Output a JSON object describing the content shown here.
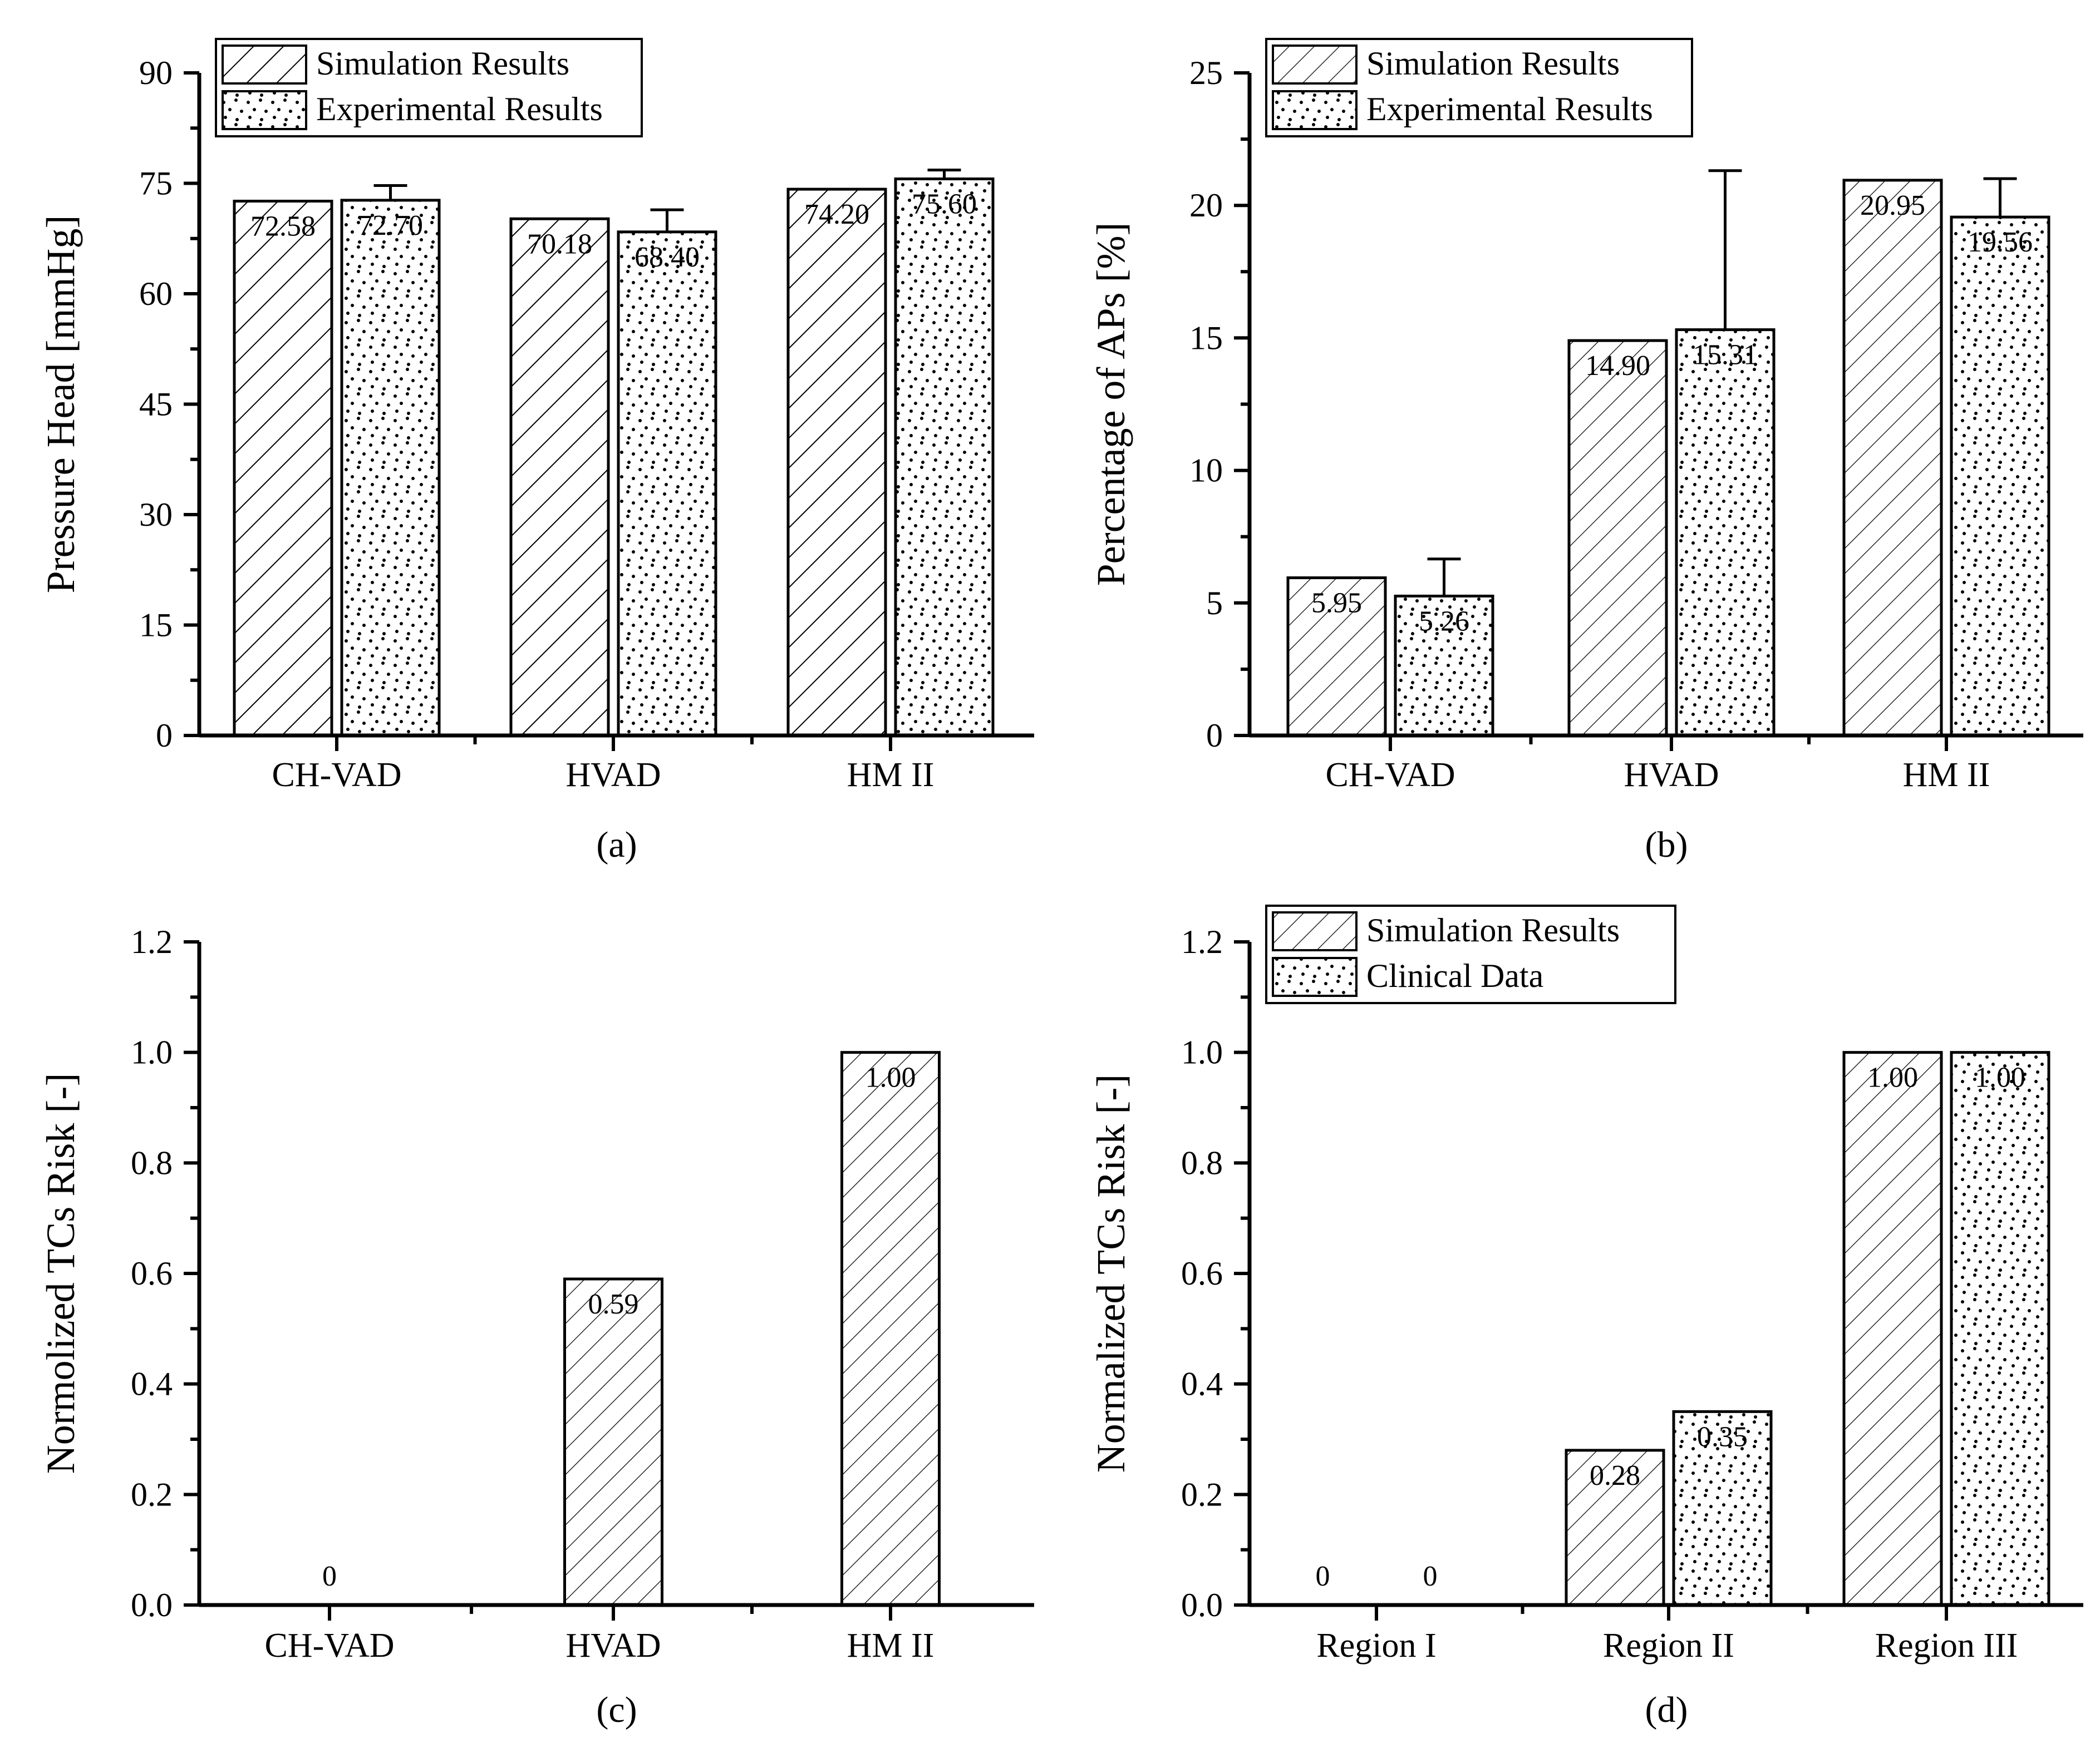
{
  "chart_data": [
    {
      "type": "bar",
      "panel_label": "(a)",
      "title": "",
      "xlabel": "",
      "ylabel": "Pressure Head [mmHg]",
      "ylim": [
        0,
        90
      ],
      "yticks": [
        "0",
        "15",
        "30",
        "45",
        "60",
        "75",
        "90"
      ],
      "grid": false,
      "legend_position": "top-left",
      "categories": [
        "CH-VAD",
        "HVAD",
        "HM II"
      ],
      "series": [
        {
          "name": "Simulation Results",
          "pattern": "hatch-dense",
          "values": [
            72.58,
            70.18,
            74.2
          ],
          "labels": [
            "72.58",
            "70.18",
            "74.20"
          ],
          "errors": null
        },
        {
          "name": "Experimental Results",
          "pattern": "dots",
          "values": [
            72.7,
            68.4,
            75.6
          ],
          "labels": [
            "72.70",
            "68.40",
            "75.60"
          ],
          "errors": [
            2.0,
            3.0,
            1.2
          ]
        }
      ]
    },
    {
      "type": "bar",
      "panel_label": "(b)",
      "title": "",
      "xlabel": "",
      "ylabel": "Percentage of APs [%]",
      "ylim": [
        0,
        25
      ],
      "yticks": [
        "0",
        "5",
        "10",
        "15",
        "20",
        "25"
      ],
      "grid": false,
      "legend_position": "top-left",
      "categories": [
        "CH-VAD",
        "HVAD",
        "HM II"
      ],
      "series": [
        {
          "name": "Simulation Results",
          "pattern": "hatch-thin",
          "values": [
            5.95,
            14.9,
            20.95
          ],
          "labels": [
            "5.95",
            "14.90",
            "20.95"
          ],
          "errors": null
        },
        {
          "name": "Experimental Results",
          "pattern": "dots",
          "values": [
            5.26,
            15.31,
            19.56
          ],
          "labels": [
            "5.26",
            "15.31",
            "19.56"
          ],
          "errors": [
            1.4,
            6.0,
            1.45
          ]
        }
      ]
    },
    {
      "type": "bar",
      "panel_label": "(c)",
      "title": "",
      "xlabel": "",
      "ylabel": "Normolized  TCs Risk [-]",
      "ylim": [
        0,
        1.2
      ],
      "yticks": [
        "0.0",
        "0.2",
        "0.4",
        "0.6",
        "0.8",
        "1.0",
        "1.2"
      ],
      "grid": false,
      "legend_position": "none",
      "categories": [
        "CH-VAD",
        "HVAD",
        "HM II"
      ],
      "series": [
        {
          "name": "Simulation Results",
          "pattern": "hatch-thin",
          "values": [
            0,
            0.59,
            1.0
          ],
          "labels": [
            "0",
            "0.59",
            "1.00"
          ],
          "errors": null
        }
      ]
    },
    {
      "type": "bar",
      "panel_label": "(d)",
      "title": "",
      "xlabel": "",
      "ylabel": "Normalized TCs Risk [-]",
      "ylim": [
        0,
        1.2
      ],
      "yticks": [
        "0.0",
        "0.2",
        "0.4",
        "0.6",
        "0.8",
        "1.0",
        "1.2"
      ],
      "grid": false,
      "legend_position": "top-left",
      "categories": [
        "Region I",
        "Region II",
        "Region III"
      ],
      "series": [
        {
          "name": "Simulation Results",
          "pattern": "hatch-thin",
          "values": [
            0,
            0.28,
            1.0
          ],
          "labels": [
            "0",
            "0.28",
            "1.00"
          ],
          "errors": null
        },
        {
          "name": "Clinical Data",
          "pattern": "dots",
          "values": [
            0,
            0.35,
            1.0
          ],
          "labels": [
            "0",
            "0.35",
            "1.00"
          ],
          "errors": null
        }
      ]
    }
  ]
}
